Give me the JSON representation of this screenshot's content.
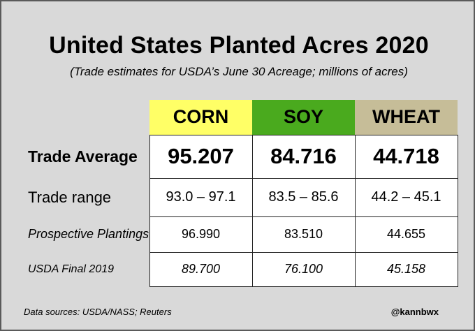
{
  "title": "United States Planted Acres 2020",
  "subtitle": "(Trade estimates for USDA’s June 30 Acreage; millions of acres)",
  "footer": {
    "source": "Data sources: USDA/NASS; Reuters",
    "handle": "@kannbwx"
  },
  "colors": {
    "corn_header": "#ffff66",
    "soy_header": "#4aaa1e",
    "wheat_header": "#c6bd98",
    "background": "#d9d9d9"
  },
  "chart_data": {
    "type": "table",
    "columns": [
      "CORN",
      "SOY",
      "WHEAT"
    ],
    "rows": [
      {
        "label": "Trade Average",
        "values": [
          "95.207",
          "84.716",
          "44.718"
        ]
      },
      {
        "label": "Trade range",
        "values": [
          "93.0 – 97.1",
          "83.5 – 85.6",
          "44.2 – 45.1"
        ]
      },
      {
        "label": "Prospective Plantings",
        "values": [
          "96.990",
          "83.510",
          "44.655"
        ]
      },
      {
        "label": "USDA Final 2019",
        "values": [
          "89.700",
          "76.100",
          "45.158"
        ]
      }
    ]
  }
}
